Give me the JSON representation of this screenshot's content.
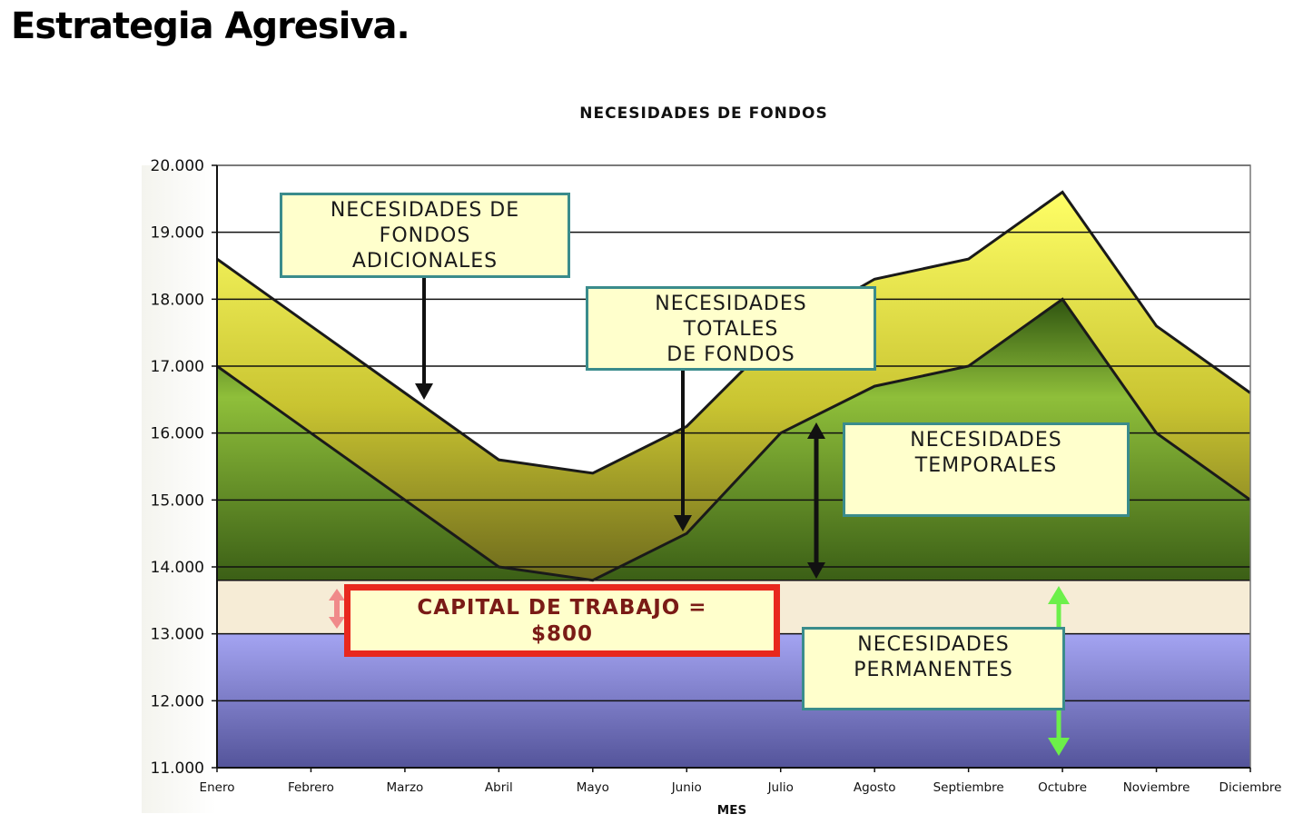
{
  "page": {
    "title": "Estrategia Agresiva."
  },
  "callouts": {
    "adicionales": "NECESIDADES DE\nFONDOS\nADICIONALES",
    "totales": "NECESIDADES\nTOTALES\nDE FONDOS",
    "temporales": "NECESIDADES\nTEMPORALES",
    "capital": "CAPITAL DE TRABAJO =\n$800",
    "permanentes": "NECESIDADES\nPERMANENTES"
  },
  "chart_data": {
    "type": "area",
    "title": "NECESIDADES DE FONDOS",
    "xlabel": "MES",
    "ylabel": "",
    "categories": [
      "Enero",
      "Febrero",
      "Marzo",
      "Abril",
      "Mayo",
      "Junio",
      "Julio",
      "Agosto",
      "Septiembre",
      "Octubre",
      "Noviembre",
      "Diciembre"
    ],
    "ylim": [
      11000,
      20000
    ],
    "yticks": [
      11000,
      12000,
      13000,
      14000,
      15000,
      16000,
      17000,
      18000,
      19000,
      20000
    ],
    "ytick_labels": [
      "11.000",
      "12.000",
      "13.000",
      "14.000",
      "15.000",
      "16.000",
      "17.000",
      "18.000",
      "19.000",
      "20.000"
    ],
    "grid": true,
    "series": [
      {
        "values": [
          18600,
          17600,
          16600,
          15600,
          15400,
          16100,
          17500,
          18300,
          18600,
          19600,
          17600,
          16600
        ]
      },
      {
        "values": [
          17000,
          16000,
          15000,
          14000,
          13800,
          14500,
          16000,
          16700,
          17000,
          18000,
          16000,
          15000
        ]
      }
    ],
    "permanent_level": 13000,
    "capital_level": 13800,
    "colors": {
      "total_area": "#e6e64a",
      "temporal_area": "#6f9a2a",
      "capital_band": "#f6ecd6",
      "permanent_area": "#9a9ae8"
    }
  }
}
